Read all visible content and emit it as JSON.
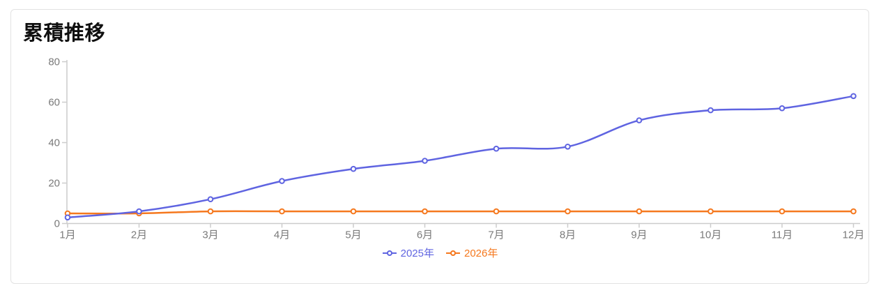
{
  "chart_data": {
    "type": "line",
    "title": "累積推移",
    "categories": [
      "1月",
      "2月",
      "3月",
      "4月",
      "5月",
      "6月",
      "7月",
      "8月",
      "9月",
      "10月",
      "11月",
      "12月"
    ],
    "series": [
      {
        "name": "2025年",
        "color": "#5f64e1",
        "values": [
          3,
          6,
          12,
          21,
          27,
          31,
          37,
          38,
          51,
          56,
          57,
          63
        ]
      },
      {
        "name": "2026年",
        "color": "#f5781e",
        "values": [
          5,
          5,
          6,
          6,
          6,
          6,
          6,
          6,
          6,
          6,
          6,
          6
        ]
      }
    ],
    "xlabel": "",
    "ylabel": "",
    "ylim": [
      0,
      80
    ],
    "yticks": [
      0,
      20,
      40,
      60,
      80
    ],
    "grid": false,
    "legend_position": "bottom"
  }
}
